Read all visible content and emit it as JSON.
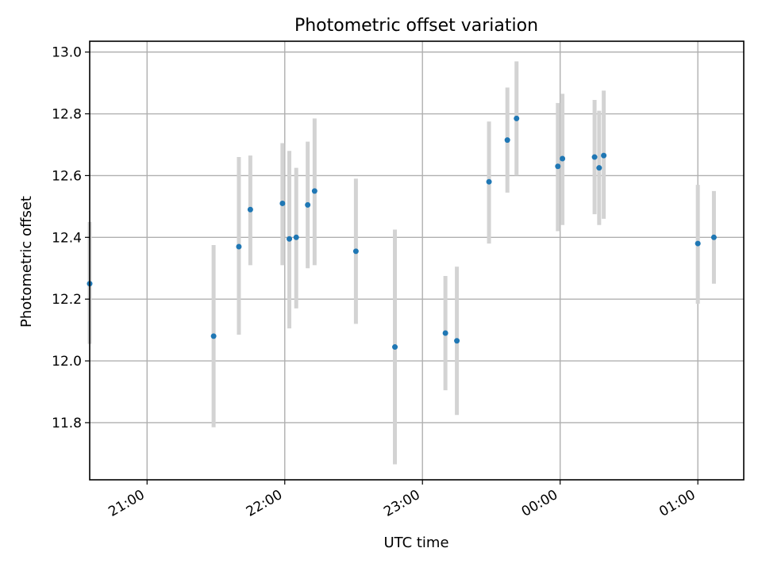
{
  "chart_data": {
    "type": "scatter",
    "title": "Photometric offset variation",
    "xlabel": "UTC time",
    "ylabel": "Photometric offset",
    "x_ticks": [
      "21:00",
      "22:00",
      "23:00",
      "00:00",
      "01:00"
    ],
    "y_ticks": [
      "11.8",
      "12.0",
      "12.2",
      "12.4",
      "12.6",
      "12.8",
      "13.0"
    ],
    "xlim": [
      "20:35",
      "01:20"
    ],
    "ylim": [
      11.615,
      13.035
    ],
    "grid": true,
    "colors": {
      "point": "#1f77b4",
      "errorbar": "#d3d3d3",
      "grid": "#b0b0b0",
      "axes": "#000000"
    },
    "points": [
      {
        "x": "20:35",
        "y": 12.25,
        "low": 12.055,
        "high": 12.45
      },
      {
        "x": "21:29",
        "y": 12.08,
        "low": 11.785,
        "high": 12.375
      },
      {
        "x": "21:40",
        "y": 12.37,
        "low": 12.085,
        "high": 12.66
      },
      {
        "x": "21:45",
        "y": 12.49,
        "low": 12.31,
        "high": 12.665
      },
      {
        "x": "21:59",
        "y": 12.51,
        "low": 12.31,
        "high": 12.705
      },
      {
        "x": "22:02",
        "y": 12.395,
        "low": 12.105,
        "high": 12.68
      },
      {
        "x": "22:05",
        "y": 12.4,
        "low": 12.17,
        "high": 12.625
      },
      {
        "x": "22:10",
        "y": 12.505,
        "low": 12.3,
        "high": 12.71
      },
      {
        "x": "22:13",
        "y": 12.55,
        "low": 12.31,
        "high": 12.785
      },
      {
        "x": "22:31",
        "y": 12.355,
        "low": 12.12,
        "high": 12.59
      },
      {
        "x": "22:48",
        "y": 12.045,
        "low": 11.665,
        "high": 12.425
      },
      {
        "x": "23:10",
        "y": 12.09,
        "low": 11.905,
        "high": 12.275
      },
      {
        "x": "23:15",
        "y": 12.065,
        "low": 11.825,
        "high": 12.305
      },
      {
        "x": "23:29",
        "y": 12.58,
        "low": 12.38,
        "high": 12.775
      },
      {
        "x": "23:37",
        "y": 12.715,
        "low": 12.545,
        "high": 12.885
      },
      {
        "x": "23:41",
        "y": 12.785,
        "low": 12.6,
        "high": 12.97
      },
      {
        "x": "23:59",
        "y": 12.63,
        "low": 12.42,
        "high": 12.835
      },
      {
        "x": "00:01",
        "y": 12.655,
        "low": 12.44,
        "high": 12.865
      },
      {
        "x": "00:15",
        "y": 12.66,
        "low": 12.475,
        "high": 12.845
      },
      {
        "x": "00:17",
        "y": 12.625,
        "low": 12.44,
        "high": 12.81
      },
      {
        "x": "00:19",
        "y": 12.665,
        "low": 12.46,
        "high": 12.875
      },
      {
        "x": "01:00",
        "y": 12.38,
        "low": 12.185,
        "high": 12.57
      },
      {
        "x": "01:07",
        "y": 12.4,
        "low": 12.25,
        "high": 12.55
      }
    ]
  }
}
